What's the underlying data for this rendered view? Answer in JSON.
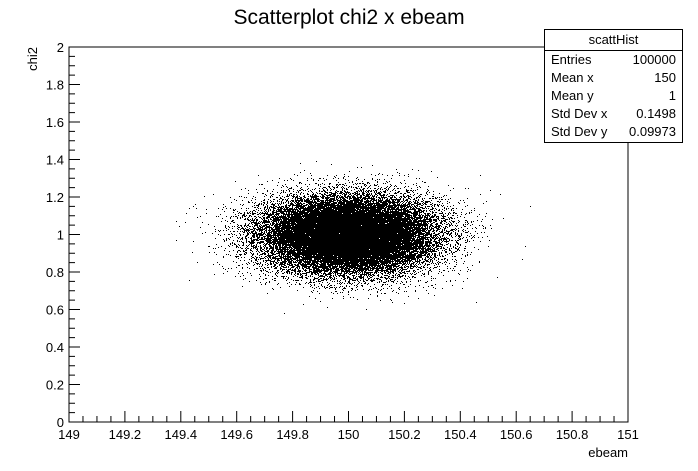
{
  "chart_data": {
    "type": "scatter",
    "title": "Scatterplot chi2 x ebeam",
    "xlabel": "ebeam",
    "ylabel": "chi2",
    "xlim": [
      149,
      151
    ],
    "ylim": [
      0,
      2
    ],
    "x_ticks": [
      "149",
      "149.2",
      "149.4",
      "149.6",
      "149.8",
      "150",
      "150.2",
      "150.4",
      "150.6",
      "150.8",
      "151"
    ],
    "y_ticks": [
      "0",
      "0.2",
      "0.4",
      "0.6",
      "0.8",
      "1",
      "1.2",
      "1.4",
      "1.6",
      "1.8",
      "2"
    ],
    "series": [
      {
        "distribution": "gaussian",
        "n_points": 100000,
        "mean_x": 150,
        "mean_y": 1,
        "std_x": 0.1498,
        "std_y": 0.09973,
        "color": "#000000"
      }
    ],
    "grid": false,
    "legend": "none"
  },
  "stats": {
    "title": "scattHist",
    "rows": [
      {
        "label": "Entries",
        "value": "100000"
      },
      {
        "label": "Mean x",
        "value": "150"
      },
      {
        "label": "Mean y",
        "value": "1"
      },
      {
        "label": "Std Dev x",
        "value": "0.1498"
      },
      {
        "label": "Std Dev y",
        "value": "0.09973"
      }
    ]
  }
}
